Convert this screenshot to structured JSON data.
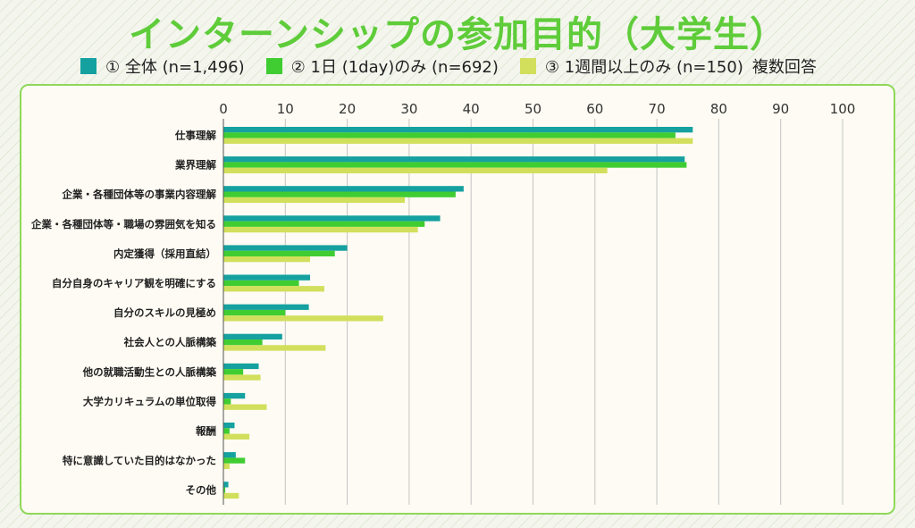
{
  "title": "インターンシップの参加目的（大学生）",
  "legend_note": "複数回答",
  "colors": {
    "s1": "#15a1a0",
    "s2": "#3fcd32",
    "s3": "#d2df5c",
    "grid": "#c4c4c4"
  },
  "chart_data": {
    "type": "bar",
    "orientation": "horizontal",
    "xlim": [
      0,
      100
    ],
    "xticks": [
      "0",
      "10",
      "20",
      "30",
      "40",
      "50",
      "60",
      "70",
      "80",
      "90",
      "100"
    ],
    "categories": [
      "仕事理解",
      "業界理解",
      "企業・各種団体等の事業内容理解",
      "企業・各種団体等・職場の雰囲気を知る",
      "内定獲得（採用直結）",
      "自分自身のキャリア観を明確にする",
      "自分のスキルの見極め",
      "社会人との人脈構築",
      "他の就職活動生との人脈構築",
      "大学カリキュラムの単位取得",
      "報酬",
      "特に意識していた目的はなかった",
      "その他"
    ],
    "series": [
      {
        "name": "①  全体 (n=1,496)",
        "color": "#15a1a0",
        "values": [
          75.8,
          74.5,
          38.8,
          35.0,
          20.0,
          14.0,
          13.8,
          9.5,
          5.7,
          3.5,
          1.8,
          2.0,
          0.8
        ]
      },
      {
        "name": "② 1日 (1day)のみ  (n=692)",
        "color": "#3fcd32",
        "values": [
          73.0,
          74.8,
          37.5,
          32.5,
          18.0,
          12.2,
          10.0,
          6.3,
          3.2,
          1.2,
          1.0,
          3.5,
          0.3
        ]
      },
      {
        "name": "③ 1週間以上のみ (n=150)",
        "color": "#d2df5c",
        "values": [
          75.8,
          62.0,
          29.3,
          31.4,
          14.0,
          16.3,
          25.8,
          16.5,
          6.0,
          7.0,
          4.2,
          1.0,
          2.5
        ]
      }
    ]
  }
}
